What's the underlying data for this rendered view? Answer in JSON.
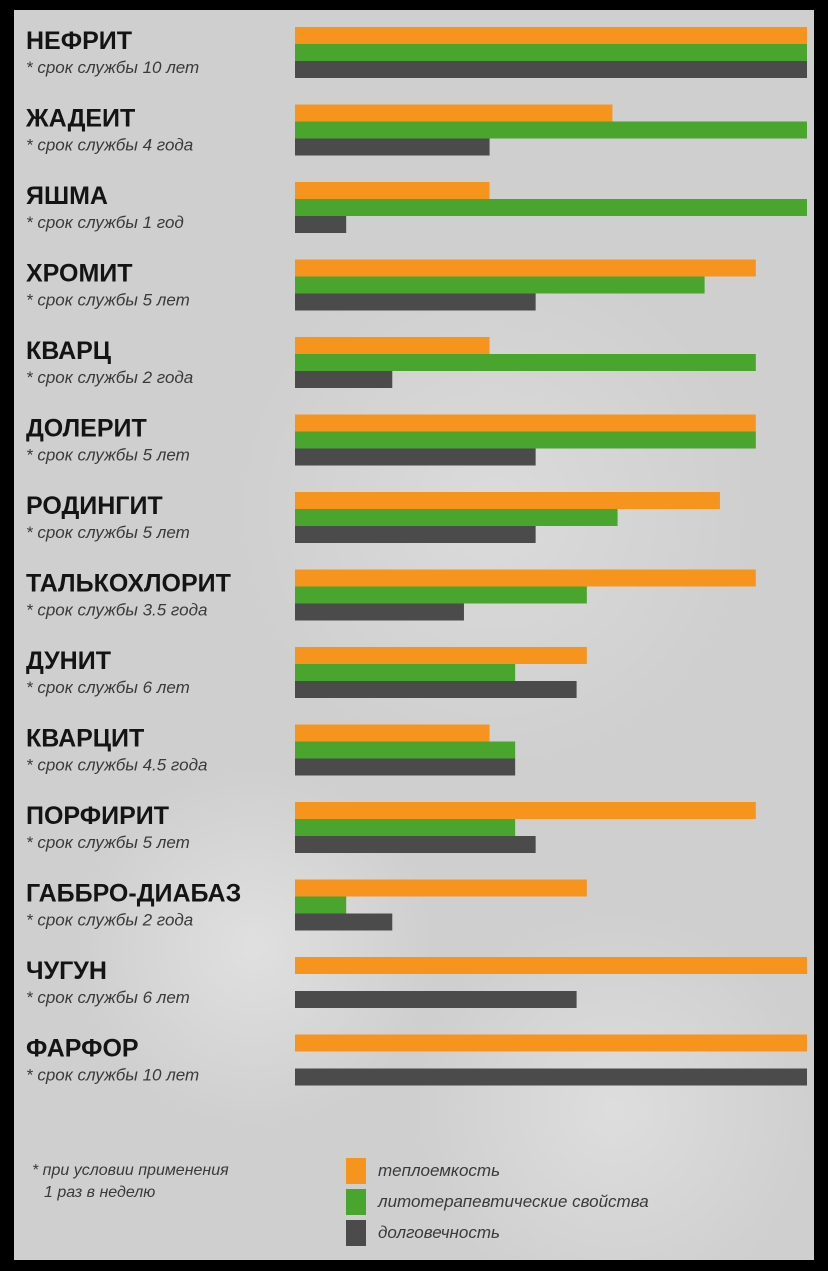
{
  "chart_data": {
    "type": "bar",
    "orientation": "horizontal",
    "categories": [
      "НЕФРИТ",
      "ЖАДЕИТ",
      "ЯШМА",
      "ХРОМИТ",
      "КВАРЦ",
      "ДОЛЕРИТ",
      "РОДИНГИТ",
      "ТАЛЬКОХЛОРИТ",
      "ДУНИТ",
      "КВАРЦИТ",
      "ПОРФИРИТ",
      "ГАББРО-ДИАБАЗ",
      "ЧУГУН",
      "ФАРФОР"
    ],
    "sublabels": [
      "* срок службы 10 лет",
      "* срок службы 4 года",
      "* срок службы 1 год",
      "* срок службы  5 лет",
      "* срок службы  2 года",
      "* срок службы 5 лет",
      "* срок службы 5 лет",
      "* срок службы  3.5 года",
      "* срок службы 6 лет",
      "* срок службы 4.5 года",
      "* срок службы 5 лет",
      "* срок службы  2 года",
      "* срок службы  6 лет",
      "* срок службы 10 лет"
    ],
    "series": [
      {
        "name": "теплоемкость",
        "color": "#f7941d",
        "values": [
          100,
          62,
          38,
          90,
          38,
          90,
          83,
          90,
          57,
          38,
          90,
          57,
          100,
          100
        ]
      },
      {
        "name": "литотерапевтические свойства",
        "color": "#4aa52e",
        "values": [
          100,
          100,
          100,
          80,
          90,
          90,
          63,
          57,
          43,
          43,
          43,
          10,
          null,
          null
        ]
      },
      {
        "name": "долговечность",
        "color": "#4b4b4b",
        "values": [
          100,
          38,
          10,
          47,
          19,
          47,
          47,
          33,
          55,
          43,
          47,
          19,
          55,
          100
        ]
      }
    ],
    "xlim": [
      0,
      100
    ],
    "legend_position": "bottom",
    "grid": false
  },
  "footnote": {
    "line1": "* при условии применения",
    "line2": "1 раз в неделю"
  }
}
